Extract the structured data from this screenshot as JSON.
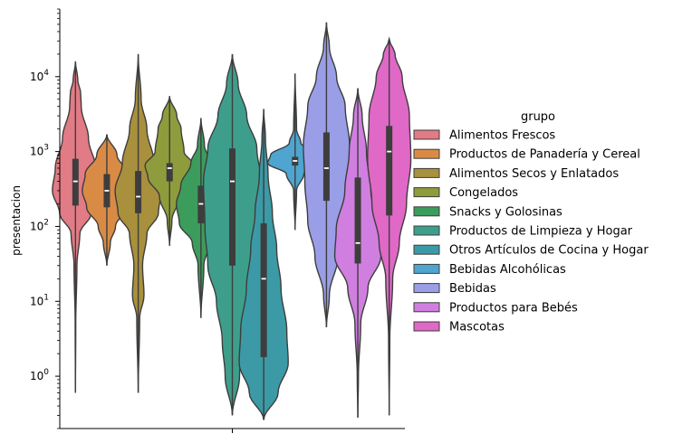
{
  "chart_data": {
    "type": "violin",
    "ylabel": "presentacion",
    "yscale": "log",
    "ylim": [
      0.2,
      80000
    ],
    "yticks": [
      {
        "value": 1,
        "base": "10",
        "exp": "0"
      },
      {
        "value": 10,
        "base": "10",
        "exp": "1"
      },
      {
        "value": 100,
        "base": "10",
        "exp": "2"
      },
      {
        "value": 1000,
        "base": "10",
        "exp": "3"
      },
      {
        "value": 10000,
        "base": "10",
        "exp": "4"
      }
    ],
    "legend": {
      "title": "grupo",
      "placement": "right"
    },
    "series": [
      {
        "name": "Alimentos Frescos",
        "color": "#e17b85",
        "min": 0.6,
        "max": 16000,
        "q1": 190,
        "median": 400,
        "q3": 800,
        "profile": [
          [
            0.6,
            0
          ],
          [
            5,
            0.01
          ],
          [
            30,
            0.05
          ],
          [
            80,
            0.15
          ],
          [
            150,
            0.55
          ],
          [
            300,
            0.8
          ],
          [
            600,
            0.7
          ],
          [
            1500,
            0.45
          ],
          [
            4000,
            0.2
          ],
          [
            6000,
            0.18
          ],
          [
            9000,
            0.08
          ],
          [
            16000,
            0
          ]
        ]
      },
      {
        "name": "Productos de Panadería y Cereal",
        "color": "#d98b45",
        "min": 30,
        "max": 1700,
        "q1": 180,
        "median": 300,
        "q3": 500,
        "profile": [
          [
            30,
            0
          ],
          [
            60,
            0.12
          ],
          [
            100,
            0.3
          ],
          [
            180,
            0.7
          ],
          [
            300,
            0.85
          ],
          [
            500,
            0.75
          ],
          [
            900,
            0.35
          ],
          [
            1700,
            0
          ]
        ]
      },
      {
        "name": "Alimentos Secos y Enlatados",
        "color": "#a9903d",
        "min": 0.6,
        "max": 20000,
        "q1": 150,
        "median": 250,
        "q3": 550,
        "profile": [
          [
            0.6,
            0
          ],
          [
            6,
            0.05
          ],
          [
            12,
            0.2
          ],
          [
            30,
            0.15
          ],
          [
            80,
            0.3
          ],
          [
            150,
            0.7
          ],
          [
            300,
            0.8
          ],
          [
            700,
            0.55
          ],
          [
            2000,
            0.3
          ],
          [
            5000,
            0.1
          ],
          [
            20000,
            0
          ]
        ]
      },
      {
        "name": "Congelados",
        "color": "#8e9c3c",
        "min": 55,
        "max": 5500,
        "q1": 400,
        "median": 600,
        "q3": 700,
        "profile": [
          [
            55,
            0
          ],
          [
            120,
            0.08
          ],
          [
            250,
            0.35
          ],
          [
            450,
            0.75
          ],
          [
            650,
            0.85
          ],
          [
            1000,
            0.5
          ],
          [
            2000,
            0.4
          ],
          [
            3000,
            0.25
          ],
          [
            5500,
            0
          ]
        ]
      },
      {
        "name": "Snacks y Golosinas",
        "color": "#3c9c5b",
        "min": 6,
        "max": 2800,
        "q1": 110,
        "median": 200,
        "q3": 350,
        "profile": [
          [
            6,
            0
          ],
          [
            30,
            0.1
          ],
          [
            60,
            0.3
          ],
          [
            110,
            0.75
          ],
          [
            200,
            0.85
          ],
          [
            350,
            0.7
          ],
          [
            700,
            0.35
          ],
          [
            1200,
            0.12
          ],
          [
            2800,
            0
          ]
        ]
      },
      {
        "name": "Productos de Limpieza y Hogar",
        "color": "#3e9e8c",
        "min": 0.3,
        "max": 20000,
        "q1": 30,
        "median": 400,
        "q3": 1100,
        "profile": [
          [
            0.3,
            0
          ],
          [
            1,
            0.25
          ],
          [
            3,
            0.35
          ],
          [
            10,
            0.55
          ],
          [
            30,
            0.85
          ],
          [
            100,
            0.95
          ],
          [
            400,
            1.0
          ],
          [
            1100,
            0.85
          ],
          [
            3000,
            0.5
          ],
          [
            8000,
            0.2
          ],
          [
            20000,
            0
          ]
        ]
      },
      {
        "name": "Otros Artículos de Cocina y Hogar",
        "color": "#3b9aa5",
        "min": 0.26,
        "max": 3700,
        "q1": 1.8,
        "median": 20,
        "q3": 110,
        "profile": [
          [
            0.26,
            0
          ],
          [
            0.6,
            0.5
          ],
          [
            1.5,
            0.85
          ],
          [
            4,
            0.8
          ],
          [
            15,
            0.6
          ],
          [
            50,
            0.45
          ],
          [
            150,
            0.3
          ],
          [
            500,
            0.15
          ],
          [
            1500,
            0.06
          ],
          [
            3700,
            0
          ]
        ]
      },
      {
        "name": "Bebidas Alcohólicas",
        "color": "#4ea5cf",
        "min": 90,
        "max": 11000,
        "q1": 650,
        "median": 750,
        "q3": 850,
        "profile": [
          [
            90,
            0
          ],
          [
            300,
            0.05
          ],
          [
            500,
            0.3
          ],
          [
            700,
            0.95
          ],
          [
            900,
            0.85
          ],
          [
            1300,
            0.2
          ],
          [
            2000,
            0.05
          ],
          [
            11000,
            0
          ]
        ]
      },
      {
        "name": "Bebidas",
        "color": "#9a9ee7",
        "min": 4.5,
        "max": 53000,
        "q1": 220,
        "median": 600,
        "q3": 1800,
        "profile": [
          [
            4.5,
            0
          ],
          [
            12,
            0.1
          ],
          [
            40,
            0.4
          ],
          [
            120,
            0.65
          ],
          [
            400,
            0.75
          ],
          [
            1200,
            0.8
          ],
          [
            4000,
            0.65
          ],
          [
            10000,
            0.35
          ],
          [
            25000,
            0.1
          ],
          [
            53000,
            0
          ]
        ]
      },
      {
        "name": "Productos para Bebés",
        "color": "#d07fe0",
        "min": 0.28,
        "max": 7000,
        "q1": 32,
        "median": 60,
        "q3": 450,
        "profile": [
          [
            0.28,
            0
          ],
          [
            1,
            0.02
          ],
          [
            5,
            0.1
          ],
          [
            15,
            0.35
          ],
          [
            40,
            0.8
          ],
          [
            90,
            0.75
          ],
          [
            300,
            0.45
          ],
          [
            1000,
            0.3
          ],
          [
            3000,
            0.15
          ],
          [
            7000,
            0
          ]
        ]
      },
      {
        "name": "Mascotas",
        "color": "#e068c6",
        "min": 0.3,
        "max": 32000,
        "q1": 140,
        "median": 1000,
        "q3": 2200,
        "profile": [
          [
            0.3,
            0
          ],
          [
            3,
            0.02
          ],
          [
            20,
            0.12
          ],
          [
            60,
            0.35
          ],
          [
            200,
            0.6
          ],
          [
            800,
            0.75
          ],
          [
            3000,
            0.7
          ],
          [
            10000,
            0.45
          ],
          [
            20000,
            0.2
          ],
          [
            32000,
            0
          ]
        ]
      }
    ]
  }
}
